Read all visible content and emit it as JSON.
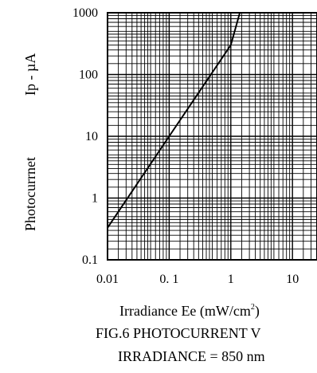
{
  "chart_data": {
    "type": "line",
    "x_scale": "log",
    "y_scale": "log",
    "xlim": [
      0.01,
      25
    ],
    "ylim": [
      0.1,
      1000
    ],
    "grid": true,
    "x_ticks": [
      "0.01",
      "0. 1",
      "1",
      "10"
    ],
    "x_tick_values": [
      0.01,
      0.1,
      1,
      10
    ],
    "y_ticks": [
      "1000",
      "100",
      "10",
      "1",
      "0.1"
    ],
    "y_tick_values": [
      1000,
      100,
      10,
      1,
      0.1
    ],
    "xlabel_main": "Irradiance Ee (mW/cm",
    "xlabel_sup": "2",
    "xlabel_end": ")",
    "ylabel_left": "Photocurrnet",
    "ylabel_right": "Ip - µA",
    "caption_line1": "FIG.6 PHOTOCURRENT V",
    "caption_line2": "IRRADIANCE = 850 nm",
    "series": [
      {
        "x": [
          0.01,
          0.1,
          1,
          1.4
        ],
        "y": [
          0.33,
          10,
          300,
          1000
        ]
      }
    ],
    "colors": {
      "axis": "#000000",
      "grid": "#000000",
      "line": "#000000",
      "background": "#ffffff"
    }
  }
}
